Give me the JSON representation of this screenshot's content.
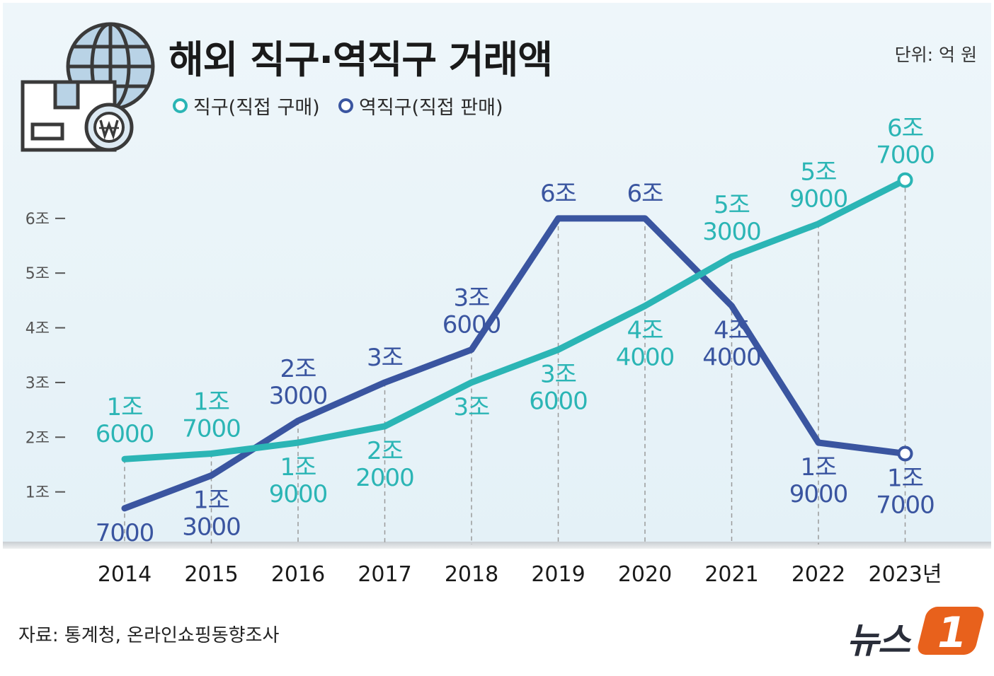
{
  "header": {
    "title": "해외 직구·역직구 거래액",
    "unit": "단위: 억 원"
  },
  "legend": [
    {
      "label": "직구(직접 구매)",
      "color": "#2bb5b5"
    },
    {
      "label": "역직구(직접 판매)",
      "color": "#3a55a0"
    }
  ],
  "footer": {
    "source": "자료: 통계청, 온라인쇼핑동향조사",
    "logo_text": "뉴스",
    "logo_badge": "1"
  },
  "icon": "globe-parcel-won-icon",
  "colors": {
    "direct": "#2bb5b5",
    "reverse": "#3a55a0",
    "axis": "#555555",
    "label_dark": "#1a1a1a"
  },
  "chart_data": {
    "type": "line",
    "categories": [
      "2014",
      "2015",
      "2016",
      "2017",
      "2018",
      "2019",
      "2020",
      "2021",
      "2022",
      "2023년"
    ],
    "ylim": [
      0,
      67000
    ],
    "yticks": [
      {
        "value": 10000,
        "label": "1조"
      },
      {
        "value": 20000,
        "label": "2조"
      },
      {
        "value": 30000,
        "label": "3조"
      },
      {
        "value": 40000,
        "label": "4조"
      },
      {
        "value": 50000,
        "label": "5조"
      },
      {
        "value": 60000,
        "label": "6조"
      }
    ],
    "series": [
      {
        "name": "직구(직접 구매)",
        "color": "#2bb5b5",
        "values": [
          16000,
          17000,
          19000,
          22000,
          30000,
          36000,
          44000,
          53000,
          59000,
          67000
        ],
        "labels": [
          [
            "1조",
            "6000"
          ],
          [
            "1조",
            "7000"
          ],
          [
            "1조",
            "9000"
          ],
          [
            "2조",
            "2000"
          ],
          [
            "3조"
          ],
          [
            "3조",
            "6000"
          ],
          [
            "4조",
            "4000"
          ],
          [
            "5조",
            "3000"
          ],
          [
            "5조",
            "9000"
          ],
          [
            "6조",
            "7000"
          ]
        ],
        "label_pos": [
          "above",
          "above",
          "below",
          "below",
          "below",
          "below",
          "below",
          "above",
          "above",
          "above"
        ]
      },
      {
        "name": "역직구(직접 판매)",
        "color": "#3a55a0",
        "values": [
          7000,
          13000,
          23000,
          30000,
          36000,
          60000,
          60000,
          44000,
          19000,
          17000
        ],
        "labels": [
          [
            "7000"
          ],
          [
            "1조",
            "3000"
          ],
          [
            "2조",
            "3000"
          ],
          [
            "3조"
          ],
          [
            "3조",
            "6000"
          ],
          [
            "6조"
          ],
          [
            "6조"
          ],
          [
            "4조",
            "4000"
          ],
          [
            "1조",
            "9000"
          ],
          [
            "1조",
            "7000"
          ]
        ],
        "label_pos": [
          "below",
          "below",
          "above",
          "above",
          "above",
          "above",
          "above",
          "below",
          "below",
          "below"
        ]
      }
    ]
  }
}
